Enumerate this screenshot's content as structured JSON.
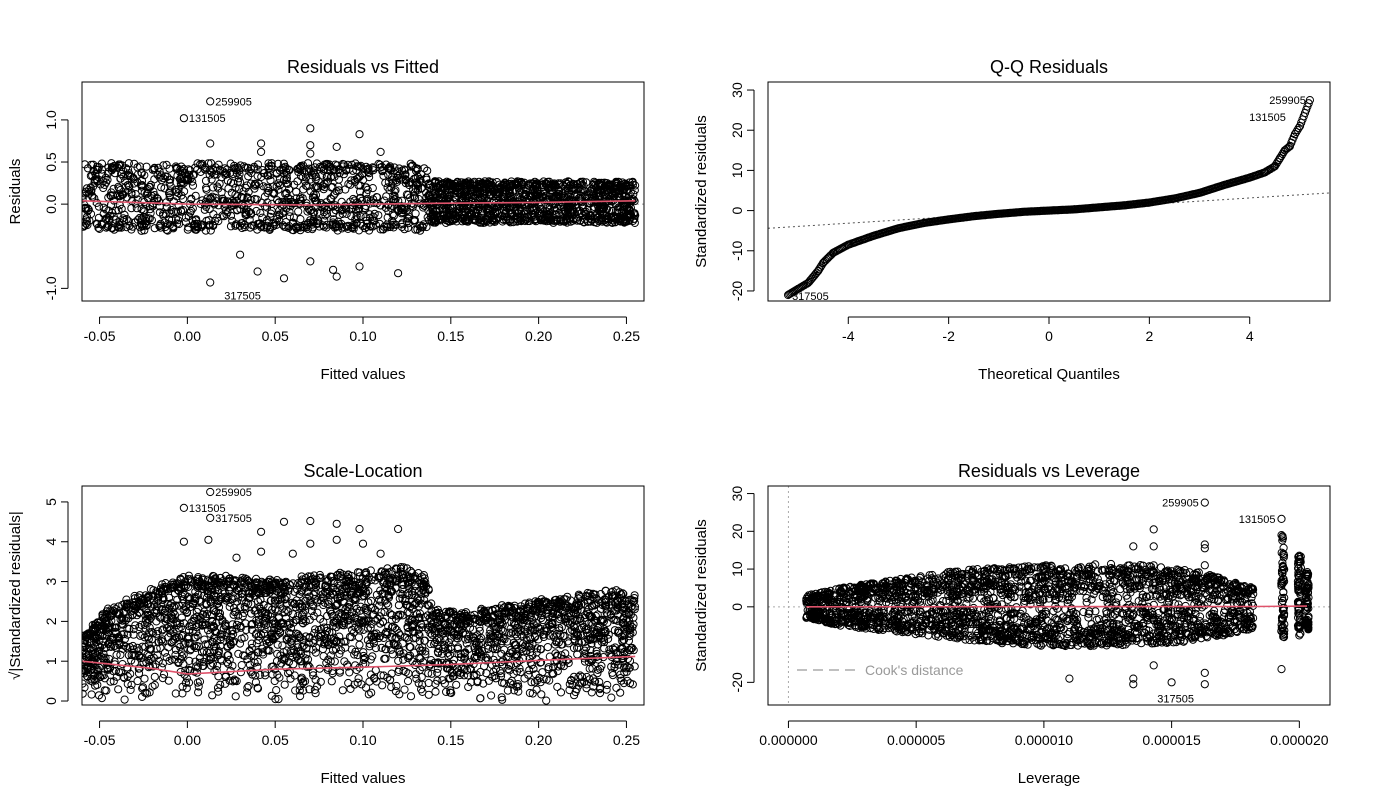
{
  "chart_data": [
    {
      "type": "scatter",
      "title": "Residuals vs Fitted",
      "xlabel": "Fitted values",
      "ylabel": "Residuals",
      "xlim": [
        -0.06,
        0.26
      ],
      "ylim": [
        -1.15,
        1.45
      ],
      "xticks": [
        -0.05,
        0.0,
        0.05,
        0.1,
        0.15,
        0.2,
        0.25
      ],
      "xtick_labels": [
        "-0.05",
        "0.00",
        "0.05",
        "0.10",
        "0.15",
        "0.20",
        "0.25"
      ],
      "yticks": [
        -1.0,
        0.0,
        0.5,
        1.0
      ],
      "ytick_labels": [
        "-1.0",
        "0.0",
        "0.5",
        "1.0"
      ],
      "reference_line": {
        "y": 0,
        "style": "dotted",
        "color": "#999999"
      },
      "smooth_line": {
        "color": "#DF536B",
        "x": [
          -0.06,
          0.0,
          0.07,
          0.14,
          0.2,
          0.255
        ],
        "y": [
          0.04,
          0.0,
          -0.01,
          0.01,
          0.02,
          0.04
        ]
      },
      "cloud": [
        {
          "x": [
            -0.06,
            0.137
          ],
          "y": [
            -0.28,
            0.45
          ]
        },
        {
          "x": [
            0.137,
            0.255
          ],
          "y": [
            -0.2,
            0.25
          ]
        }
      ],
      "outliers": [
        {
          "x": 0.013,
          "y": 1.22
        },
        {
          "x": -0.002,
          "y": 1.02
        },
        {
          "x": 0.013,
          "y": -0.93
        },
        {
          "x": 0.07,
          "y": 0.9
        },
        {
          "x": 0.098,
          "y": 0.83
        },
        {
          "x": 0.042,
          "y": 0.72
        },
        {
          "x": 0.013,
          "y": 0.72
        },
        {
          "x": 0.042,
          "y": 0.62
        },
        {
          "x": 0.07,
          "y": 0.7
        },
        {
          "x": 0.085,
          "y": 0.68
        },
        {
          "x": 0.07,
          "y": 0.6
        },
        {
          "x": 0.11,
          "y": 0.62
        },
        {
          "x": 0.04,
          "y": -0.8
        },
        {
          "x": 0.055,
          "y": -0.88
        },
        {
          "x": 0.083,
          "y": -0.78
        },
        {
          "x": 0.098,
          "y": -0.74
        },
        {
          "x": 0.12,
          "y": -0.82
        },
        {
          "x": 0.07,
          "y": -0.68
        },
        {
          "x": 0.085,
          "y": -0.86
        },
        {
          "x": 0.03,
          "y": -0.6
        }
      ],
      "labels": [
        {
          "text": "259905",
          "x": 0.013,
          "y": 1.22
        },
        {
          "text": "131505",
          "x": -0.002,
          "y": 1.02
        },
        {
          "text": "317505",
          "x": 0.013,
          "y": -0.93
        }
      ]
    },
    {
      "type": "scatter",
      "title": "Q-Q Residuals",
      "xlabel": "Theoretical Quantiles",
      "ylabel": "Standardized residuals",
      "xlim": [
        -5.6,
        5.6
      ],
      "ylim": [
        -22.5,
        32
      ],
      "xticks": [
        -4,
        -2,
        0,
        2,
        4
      ],
      "xtick_labels": [
        "-4",
        "-2",
        "0",
        "2",
        "4"
      ],
      "yticks": [
        -20,
        -10,
        0,
        10,
        20,
        30
      ],
      "ytick_labels": [
        "-20",
        "-10",
        "0",
        "10",
        "20",
        "30"
      ],
      "reference_line": {
        "x": [
          -5.6,
          5.6
        ],
        "y": [
          -4.4,
          4.4
        ],
        "style": "dotted",
        "color": "#555555"
      },
      "quantile_curve": {
        "x": [
          -5.2,
          -5.0,
          -4.8,
          -4.6,
          -4.5,
          -4.3,
          -4.0,
          -3.5,
          -3.0,
          -2.5,
          -2.0,
          -1.5,
          -1.0,
          -0.5,
          0.0,
          0.5,
          1.0,
          1.5,
          2.0,
          2.5,
          3.0,
          3.5,
          4.0,
          4.3,
          4.5,
          4.6,
          4.7,
          4.8,
          4.9,
          5.0,
          5.2
        ],
        "y": [
          -21,
          -19.5,
          -18,
          -15,
          -13,
          -10.5,
          -8.5,
          -6.3,
          -4.4,
          -3.1,
          -2.2,
          -1.4,
          -0.8,
          -0.3,
          0.0,
          0.3,
          0.8,
          1.3,
          2.0,
          3.0,
          4.4,
          6.4,
          8.2,
          9.5,
          11,
          13,
          15,
          16,
          19,
          21,
          27.5
        ]
      },
      "labels": [
        {
          "text": "259905",
          "x": 5.2,
          "y": 27.5
        },
        {
          "text": "131505",
          "x": 4.8,
          "y": 23.3
        },
        {
          "text": "317505",
          "x": -5.2,
          "y": -21
        }
      ]
    },
    {
      "type": "scatter",
      "title": "Scale-Location",
      "xlabel": "Fitted values",
      "ylabel": "√|Standardized residuals|",
      "xlim": [
        -0.06,
        0.26
      ],
      "ylim": [
        -0.1,
        5.4
      ],
      "xticks": [
        -0.05,
        0.0,
        0.05,
        0.1,
        0.15,
        0.2,
        0.25
      ],
      "xtick_labels": [
        "-0.05",
        "0.00",
        "0.05",
        "0.10",
        "0.15",
        "0.20",
        "0.25"
      ],
      "yticks": [
        0,
        1,
        2,
        3,
        4,
        5
      ],
      "ytick_labels": [
        "0",
        "1",
        "2",
        "3",
        "4",
        "5"
      ],
      "smooth_line": {
        "color": "#DF536B",
        "x": [
          -0.06,
          -0.02,
          0.0,
          0.01,
          0.05,
          0.1,
          0.15,
          0.2,
          0.255
        ],
        "y": [
          1.0,
          0.82,
          0.68,
          0.7,
          0.8,
          0.85,
          0.92,
          1.02,
          1.12
        ]
      },
      "cloud_top": {
        "x": [
          -0.06,
          -0.045,
          -0.02,
          0.0,
          0.02,
          0.05,
          0.08,
          0.1,
          0.12,
          0.136,
          0.14,
          0.16,
          0.18,
          0.2,
          0.22,
          0.24,
          0.255
        ],
        "y": [
          1.6,
          2.3,
          2.8,
          3.1,
          3.1,
          3.0,
          3.15,
          3.2,
          3.35,
          3.1,
          2.3,
          2.2,
          2.4,
          2.5,
          2.6,
          2.8,
          2.6
        ]
      },
      "outliers": [
        {
          "x": 0.013,
          "y": 5.25
        },
        {
          "x": -0.002,
          "y": 4.85
        },
        {
          "x": 0.013,
          "y": 4.6
        },
        {
          "x": -0.002,
          "y": 4.0
        },
        {
          "x": 0.012,
          "y": 4.05
        },
        {
          "x": 0.042,
          "y": 4.25
        },
        {
          "x": 0.055,
          "y": 4.5
        },
        {
          "x": 0.07,
          "y": 4.52
        },
        {
          "x": 0.085,
          "y": 4.45
        },
        {
          "x": 0.098,
          "y": 4.32
        },
        {
          "x": 0.12,
          "y": 4.32
        },
        {
          "x": 0.042,
          "y": 3.75
        },
        {
          "x": 0.07,
          "y": 3.95
        },
        {
          "x": 0.085,
          "y": 4.05
        },
        {
          "x": 0.1,
          "y": 3.95
        },
        {
          "x": 0.11,
          "y": 3.7
        },
        {
          "x": 0.028,
          "y": 3.6
        },
        {
          "x": 0.06,
          "y": 3.7
        }
      ],
      "labels": [
        {
          "text": "259905",
          "x": 0.013,
          "y": 5.25
        },
        {
          "text": "131505",
          "x": -0.002,
          "y": 4.85
        },
        {
          "text": "317505",
          "x": 0.013,
          "y": 4.6
        }
      ]
    },
    {
      "type": "scatter",
      "title": "Residuals vs Leverage",
      "xlabel": "Leverage",
      "ylabel": "Standardized residuals",
      "xlim": [
        -8e-07,
        2.12e-05
      ],
      "ylim": [
        -26,
        32
      ],
      "xticks": [
        0,
        5e-06,
        1e-05,
        1.5e-05,
        2e-05
      ],
      "xtick_labels": [
        "0.000000",
        "0.000005",
        "0.000010",
        "0.000015",
        "0.000020"
      ],
      "yticks": [
        -20,
        0,
        10,
        20,
        30
      ],
      "ytick_labels": [
        "-20",
        "0",
        "10",
        "20",
        "30"
      ],
      "reference_lines": [
        {
          "y": 0,
          "style": "dotted",
          "color": "#aaaaaa"
        },
        {
          "x": 0,
          "style": "dotted",
          "color": "#aaaaaa"
        }
      ],
      "smooth_line": {
        "color": "#DF536B",
        "x": [
          7e-07,
          1.82e-05,
          2.03e-05
        ],
        "y": [
          0,
          0.1,
          0.2
        ]
      },
      "legend": {
        "text": "Cook's distance",
        "position": "bottom-left",
        "line_style": "dashed"
      },
      "cloud_top": {
        "x": [
          7e-07,
          2e-06,
          4e-06,
          6e-06,
          8e-06,
          1e-05,
          1.2e-05,
          1.4e-05,
          1.6e-05,
          1.82e-05
        ],
        "y": [
          3,
          5,
          7,
          9,
          10.5,
          11,
          11.5,
          11,
          9.5,
          5
        ]
      },
      "cloud_bottom": {
        "x": [
          7e-07,
          2e-06,
          4e-06,
          6e-06,
          8e-06,
          1e-05,
          1.2e-05,
          1.4e-05,
          1.6e-05,
          1.82e-05
        ],
        "y": [
          -3,
          -5,
          -6.5,
          -8,
          -9.5,
          -10.5,
          -10.5,
          -10,
          -9,
          -6
        ]
      },
      "leverage_bands": [
        {
          "x": 1.935e-05,
          "y": [
            -9,
            19
          ]
        },
        {
          "x": 2e-05,
          "y": [
            -8,
            14
          ]
        },
        {
          "x": 2.03e-05,
          "y": [
            -6,
            10
          ]
        }
      ],
      "outliers": [
        {
          "x": 1.63e-05,
          "y": 27.6
        },
        {
          "x": 1.93e-05,
          "y": 23.3
        },
        {
          "x": 1.5e-05,
          "y": -20
        },
        {
          "x": 1.43e-05,
          "y": 20.5
        },
        {
          "x": 1.63e-05,
          "y": 16.5
        },
        {
          "x": 1.63e-05,
          "y": 15.5
        },
        {
          "x": 1.35e-05,
          "y": 16
        },
        {
          "x": 1.43e-05,
          "y": 16
        },
        {
          "x": 1.93e-05,
          "y": 19
        },
        {
          "x": 1.1e-05,
          "y": -19
        },
        {
          "x": 1.35e-05,
          "y": -19
        },
        {
          "x": 1.35e-05,
          "y": -20.5
        },
        {
          "x": 1.43e-05,
          "y": -15.5
        },
        {
          "x": 1.63e-05,
          "y": -17.5
        },
        {
          "x": 1.63e-05,
          "y": -20.5
        },
        {
          "x": 1.93e-05,
          "y": -16.5
        },
        {
          "x": 1.43e-05,
          "y": 11
        },
        {
          "x": 1.63e-05,
          "y": 11
        }
      ],
      "labels": [
        {
          "text": "259905",
          "x": 1.63e-05,
          "y": 27.6
        },
        {
          "text": "131505",
          "x": 1.93e-05,
          "y": 23.3
        },
        {
          "text": "317505",
          "x": 1.5e-05,
          "y": -20
        }
      ]
    }
  ]
}
